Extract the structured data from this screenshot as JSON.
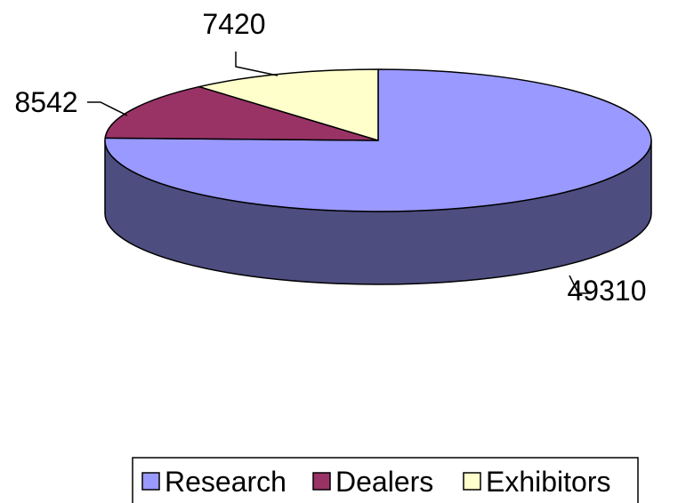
{
  "chart_data": {
    "type": "pie",
    "style": "3d",
    "categories": [
      "Research",
      "Dealers",
      "Exhibitors"
    ],
    "values": [
      49310,
      8542,
      7420
    ],
    "colors": {
      "Research": "#9999ff",
      "Dealers": "#993366",
      "Exhibitors": "#ffffcc"
    },
    "side_colors": {
      "Research": "#4d4d80",
      "Dealers": "#4d1a33",
      "Exhibitors": "#808066"
    },
    "data_labels": [
      "49310",
      "8542",
      "7420"
    ],
    "legend": {
      "position": "bottom",
      "entries": [
        "Research",
        "Dealers",
        "Exhibitors"
      ]
    },
    "title": ""
  }
}
